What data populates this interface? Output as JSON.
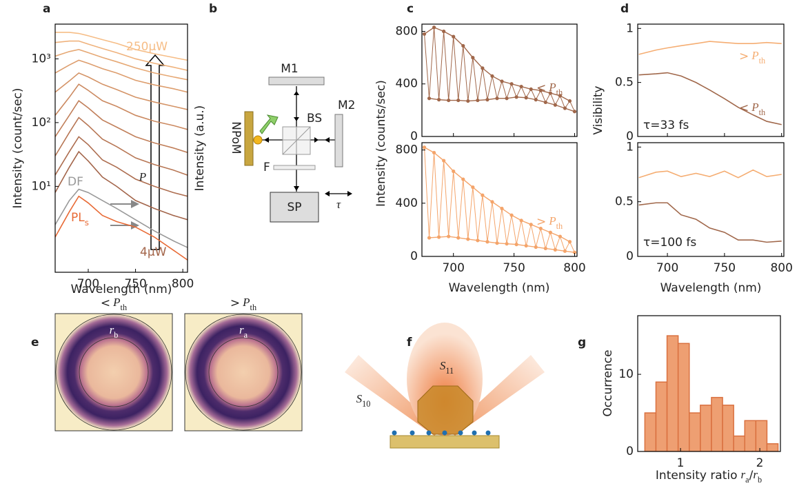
{
  "panel_labels": [
    "a",
    "b",
    "c",
    "d",
    "e",
    "f",
    "g"
  ],
  "chart_data": [
    {
      "type": "line",
      "ylog": true,
      "xlim": [
        665,
        805
      ],
      "ylim": [
        0.45,
        3500
      ],
      "xticks": [
        700,
        750,
        800
      ],
      "yticks": [
        {
          "value": 10,
          "label": "10¹"
        },
        {
          "value": 100,
          "label": "10²"
        },
        {
          "value": 1000,
          "label": "10³"
        }
      ],
      "xlabel": "Wavelength (nm)",
      "ylabel": "Intensity (count/sec)",
      "y2label": "Intensity (a.u.)",
      "arrow_label": "P",
      "x": [
        665,
        680,
        690,
        700,
        715,
        730,
        750,
        770,
        790,
        805
      ],
      "series": [
        {
          "name": "4µW",
          "color": "#a3654a",
          "values": [
            8,
            20,
            35,
            25,
            14,
            10,
            6,
            4.5,
            3.5,
            3
          ]
        },
        {
          "color": "#ad6d4f",
          "values": [
            15,
            35,
            60,
            45,
            26,
            20,
            13,
            10,
            8,
            7
          ]
        },
        {
          "color": "#b77654",
          "values": [
            30,
            70,
            120,
            90,
            55,
            42,
            28,
            22,
            18,
            15
          ]
        },
        {
          "color": "#c17f5a",
          "values": [
            60,
            130,
            220,
            170,
            110,
            85,
            60,
            48,
            40,
            34
          ]
        },
        {
          "color": "#cb8960",
          "values": [
            130,
            250,
            400,
            320,
            220,
            180,
            130,
            105,
            90,
            78
          ]
        },
        {
          "color": "#d49366",
          "values": [
            300,
            450,
            600,
            520,
            400,
            330,
            250,
            210,
            180,
            160
          ]
        },
        {
          "color": "#dd9d6d",
          "values": [
            600,
            800,
            950,
            850,
            700,
            600,
            460,
            390,
            340,
            300
          ]
        },
        {
          "color": "#e6a874",
          "values": [
            1100,
            1300,
            1400,
            1250,
            1050,
            900,
            720,
            600,
            520,
            470
          ]
        },
        {
          "color": "#efb27c",
          "values": [
            1800,
            1900,
            1900,
            1700,
            1450,
            1250,
            1000,
            850,
            740,
            660
          ]
        },
        {
          "name": "250µW",
          "color": "#f6bd86",
          "values": [
            2600,
            2600,
            2500,
            2300,
            2000,
            1750,
            1400,
            1200,
            1050,
            950
          ]
        },
        {
          "name": "DF",
          "color": "#999999",
          "values": [
            2.5,
            6,
            9,
            8,
            6,
            4.5,
            3,
            2,
            1.4,
            1.1
          ]
        },
        {
          "name": "PL",
          "name_sub": "s",
          "color": "#e86a35",
          "values": [
            1.6,
            4,
            7,
            5.5,
            3.5,
            2.8,
            2.3,
            1.6,
            1.0,
            0.7
          ]
        }
      ]
    },
    {
      "type": "line",
      "xlim": [
        674,
        802
      ],
      "ylim": [
        0,
        855
      ],
      "xticks": [
        700,
        750,
        800
      ],
      "yticks": [
        0,
        400,
        800
      ],
      "xtick_labels": false,
      "ylabel": "Intensity (counts/sec)",
      "x": [
        676,
        680,
        684,
        688,
        692,
        696,
        700,
        704,
        708,
        712,
        716,
        720,
        724,
        728,
        732,
        736,
        740,
        744,
        748,
        752,
        756,
        760,
        764,
        768,
        772,
        776,
        780,
        784,
        788,
        792,
        796,
        800
      ],
      "series": [
        {
          "color": "#a0674a",
          "markers": true,
          "envelope": true,
          "label": {
            "prefix": "<",
            "var": "P",
            "sub": "th"
          },
          "values": [
            780,
            290,
            830,
            280,
            800,
            275,
            760,
            275,
            690,
            270,
            600,
            275,
            520,
            280,
            460,
            290,
            420,
            290,
            400,
            300,
            380,
            295,
            360,
            280,
            350,
            260,
            330,
            240,
            310,
            215,
            270,
            190
          ]
        }
      ]
    },
    {
      "type": "line",
      "xlim": [
        674,
        802
      ],
      "ylim": [
        0,
        855
      ],
      "xticks": [
        700,
        750,
        800
      ],
      "yticks": [
        0,
        400,
        800
      ],
      "xlabel": "Wavelength (nm)",
      "x": [
        676,
        680,
        684,
        688,
        692,
        696,
        700,
        704,
        708,
        712,
        716,
        720,
        724,
        728,
        732,
        736,
        740,
        744,
        748,
        752,
        756,
        760,
        764,
        768,
        772,
        776,
        780,
        784,
        788,
        792,
        796,
        800
      ],
      "series": [
        {
          "color": "#f4a46a",
          "markers": true,
          "envelope": true,
          "label": {
            "prefix": ">",
            "var": "P",
            "sub": "th"
          },
          "values": [
            820,
            140,
            780,
            145,
            720,
            150,
            640,
            140,
            580,
            130,
            520,
            120,
            460,
            110,
            410,
            100,
            360,
            95,
            310,
            90,
            270,
            80,
            240,
            70,
            210,
            60,
            180,
            50,
            150,
            40,
            110,
            30
          ]
        }
      ]
    },
    {
      "type": "line",
      "xlim": [
        674,
        802
      ],
      "ylim": [
        0,
        1.04
      ],
      "xticks": [
        700,
        750,
        800
      ],
      "yticks": [
        0,
        0.5,
        1
      ],
      "xtick_labels": false,
      "ylabel": "Visibility",
      "annotation": "τ=33 fs",
      "x": [
        675,
        690,
        700,
        712,
        725,
        737,
        750,
        762,
        775,
        787,
        800
      ],
      "series": [
        {
          "color": "#f5ad72",
          "label": {
            "prefix": ">",
            "var": "P",
            "sub": "th"
          },
          "values": [
            0.76,
            0.8,
            0.82,
            0.84,
            0.86,
            0.88,
            0.87,
            0.86,
            0.86,
            0.87,
            0.86
          ]
        },
        {
          "color": "#a0674a",
          "label": {
            "prefix": "<",
            "var": "P",
            "sub": "th"
          },
          "values": [
            0.57,
            0.58,
            0.59,
            0.56,
            0.5,
            0.43,
            0.35,
            0.27,
            0.2,
            0.14,
            0.11
          ]
        }
      ]
    },
    {
      "type": "line",
      "xlim": [
        674,
        802
      ],
      "ylim": [
        0,
        1.04
      ],
      "xticks": [
        700,
        750,
        800
      ],
      "yticks": [
        0,
        0.5,
        1
      ],
      "xlabel": "Wavelength (nm)",
      "annotation": "τ=100 fs",
      "x": [
        675,
        690,
        700,
        712,
        725,
        737,
        750,
        762,
        775,
        787,
        800
      ],
      "series": [
        {
          "color": "#f5ad72",
          "values": [
            0.72,
            0.77,
            0.78,
            0.73,
            0.76,
            0.73,
            0.78,
            0.72,
            0.79,
            0.73,
            0.75
          ]
        },
        {
          "color": "#a0674a",
          "values": [
            0.47,
            0.49,
            0.49,
            0.38,
            0.34,
            0.26,
            0.22,
            0.15,
            0.15,
            0.13,
            0.14
          ]
        }
      ]
    },
    {
      "type": "histogram",
      "xlim": [
        0.46,
        2.26
      ],
      "ylim": [
        0,
        17.6
      ],
      "xticks": [
        1,
        2
      ],
      "yticks": [
        0,
        10
      ],
      "ylabel": "Occurrence",
      "xlabel": {
        "text": "Intensity ratio",
        "num": "r",
        "num_sub": "a",
        "sep": "/",
        "den": "r",
        "den_sub": "b"
      },
      "color": "#ee9f72",
      "edgecolor": "#d9703f",
      "bins": [
        0.55,
        0.69,
        0.83,
        0.97,
        1.11,
        1.25,
        1.39,
        1.53,
        1.67,
        1.81,
        1.95,
        2.09,
        2.23
      ],
      "counts": [
        5,
        9,
        15,
        14,
        5,
        6,
        7,
        6,
        2,
        4,
        4,
        1
      ]
    }
  ],
  "diagram_b": {
    "m1": "M1",
    "m2": "M2",
    "bs": "BS",
    "npom": "NPoM",
    "f": "F",
    "sp": "SP",
    "tau": "τ"
  },
  "images_e": [
    {
      "title": {
        "prefix": "<",
        "var": "P",
        "sub": "th"
      },
      "radius": {
        "var": "r",
        "sub": "b"
      }
    },
    {
      "title": {
        "prefix": ">",
        "var": "P",
        "sub": "th"
      },
      "radius": {
        "var": "r",
        "sub": "a"
      }
    }
  ],
  "diagram_f": {
    "s11": {
      "var": "S",
      "sub": "11"
    },
    "s10": {
      "var": "S",
      "sub": "10"
    }
  }
}
